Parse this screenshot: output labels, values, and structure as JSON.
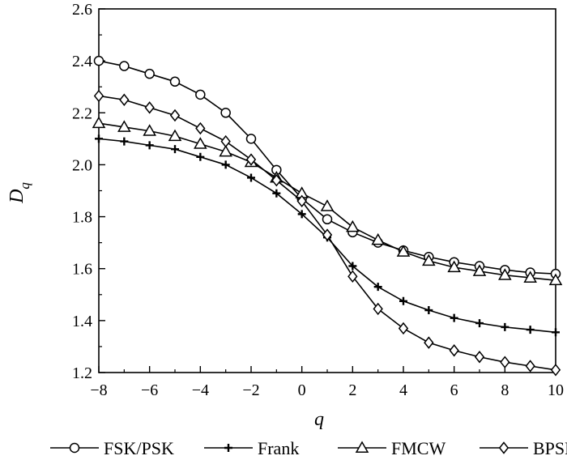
{
  "chart_data": {
    "type": "line",
    "xlabel": "q",
    "ylabel": "D",
    "ylabel_subscript": "q",
    "xlim": [
      -8,
      10
    ],
    "ylim": [
      1.2,
      2.6
    ],
    "x_ticks": [
      -8,
      -6,
      -4,
      -2,
      0,
      2,
      4,
      6,
      8,
      10
    ],
    "x_tick_labels": [
      "−8",
      "−6",
      "−4",
      "−2",
      "0",
      "2",
      "4",
      "6",
      "8",
      "10"
    ],
    "y_ticks": [
      1.2,
      1.4,
      1.6,
      1.8,
      2.0,
      2.2,
      2.4,
      2.6
    ],
    "y_tick_labels": [
      "1.2",
      "1.4",
      "1.6",
      "1.8",
      "2.0",
      "2.2",
      "2.4",
      "2.6"
    ],
    "grid": false,
    "legend_position": "bottom",
    "x": [
      -8,
      -7,
      -6,
      -5,
      -4,
      -3,
      -2,
      -1,
      0,
      1,
      2,
      3,
      4,
      5,
      6,
      7,
      8,
      9,
      10
    ],
    "series": [
      {
        "name": "FSK/PSK",
        "marker": "circle",
        "values": [
          2.4,
          2.38,
          2.35,
          2.32,
          2.27,
          2.2,
          2.1,
          1.98,
          1.87,
          1.79,
          1.74,
          1.7,
          1.67,
          1.645,
          1.625,
          1.61,
          1.595,
          1.585,
          1.58
        ]
      },
      {
        "name": "Frank",
        "marker": "plus",
        "values": [
          2.1,
          2.09,
          2.075,
          2.06,
          2.03,
          2.0,
          1.95,
          1.89,
          1.81,
          1.72,
          1.61,
          1.53,
          1.475,
          1.44,
          1.41,
          1.39,
          1.375,
          1.365,
          1.355
        ]
      },
      {
        "name": "FMCW",
        "marker": "triangle",
        "values": [
          2.16,
          2.145,
          2.13,
          2.11,
          2.08,
          2.05,
          2.01,
          1.95,
          1.89,
          1.84,
          1.76,
          1.71,
          1.665,
          1.63,
          1.605,
          1.59,
          1.575,
          1.565,
          1.555
        ]
      },
      {
        "name": "BPSK",
        "marker": "diamond",
        "values": [
          2.265,
          2.25,
          2.22,
          2.19,
          2.14,
          2.09,
          2.02,
          1.94,
          1.86,
          1.73,
          1.57,
          1.445,
          1.37,
          1.315,
          1.285,
          1.26,
          1.24,
          1.225,
          1.21
        ]
      }
    ]
  }
}
